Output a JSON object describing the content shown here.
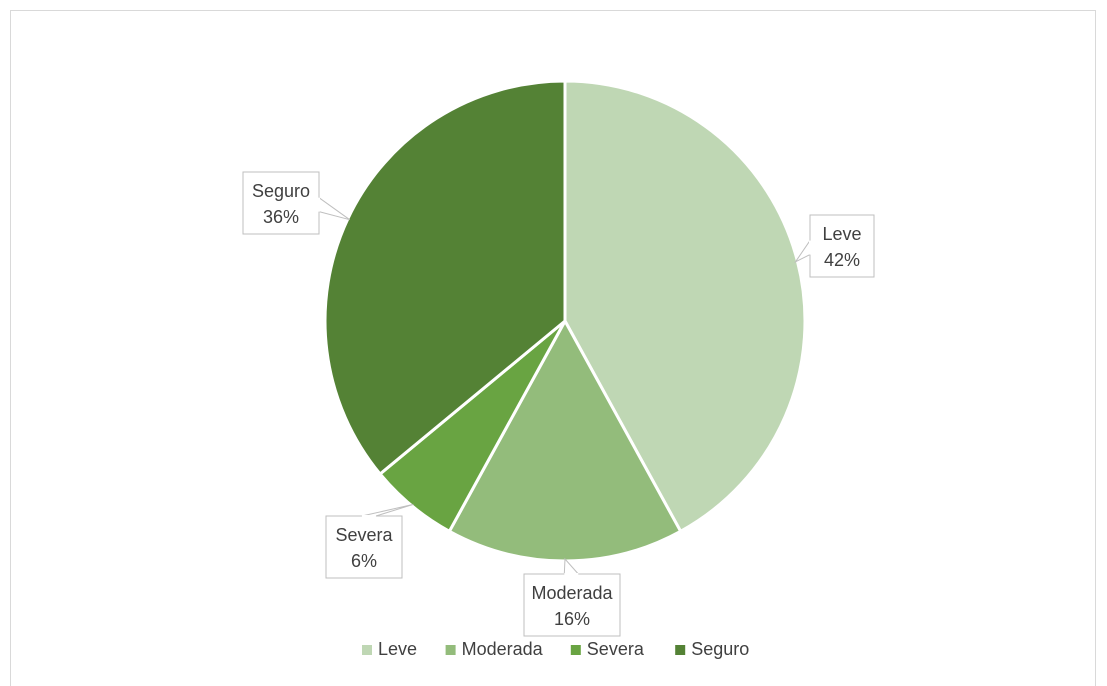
{
  "chart_data": {
    "type": "pie",
    "categories": [
      "Leve",
      "Moderada",
      "Severa",
      "Seguro"
    ],
    "values": [
      42,
      16,
      6,
      36
    ],
    "labels": [
      "42%",
      "16%",
      "6%",
      "36%"
    ],
    "colors": [
      "#bfd7b4",
      "#93bc7b",
      "#69a442",
      "#548235"
    ],
    "legend_position": "bottom"
  }
}
